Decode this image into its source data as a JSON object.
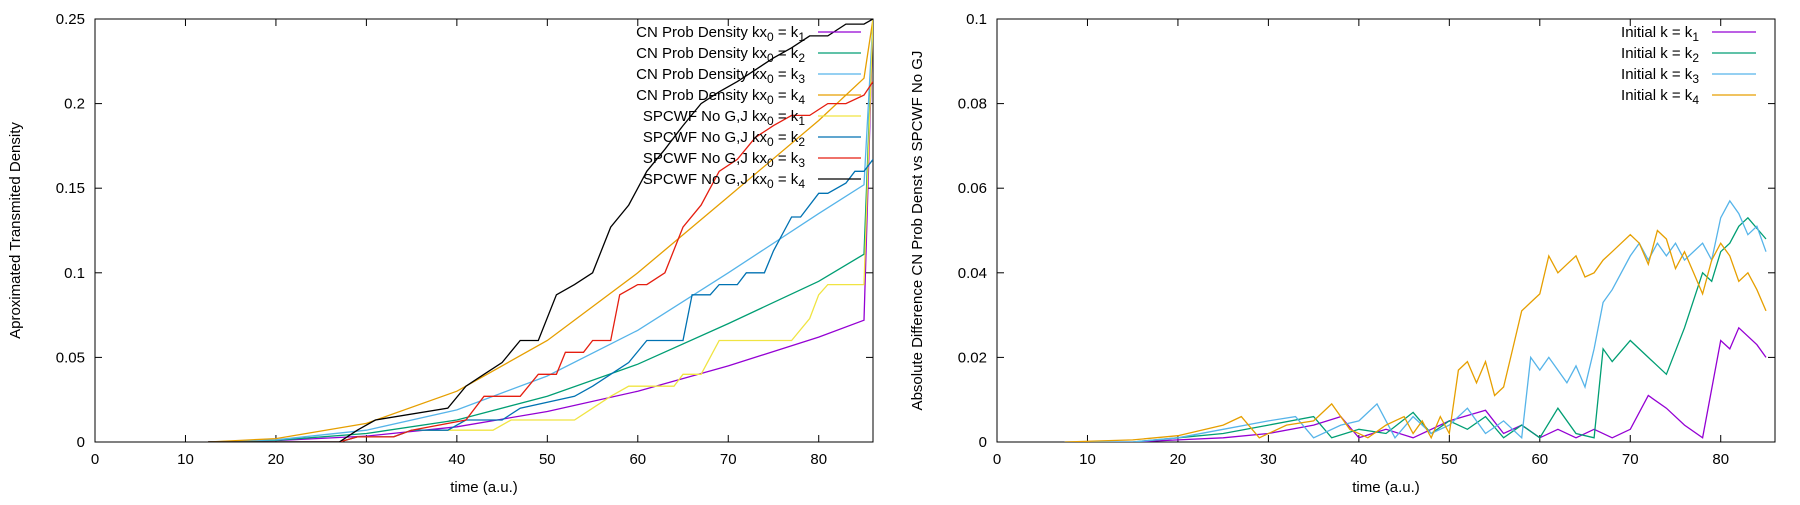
{
  "chart_data": [
    {
      "type": "line",
      "title": "",
      "xlabel": "time (a.u.)",
      "ylabel": "Aproximated Transmited Density",
      "xlim": [
        0,
        86
      ],
      "ylim": [
        0,
        0.25
      ],
      "xticks": [
        0,
        10,
        20,
        30,
        40,
        50,
        60,
        70,
        80
      ],
      "yticks": [
        0,
        0.05,
        0.1,
        0.15,
        0.2,
        0.25
      ],
      "xtick_labels": [
        "0",
        "10",
        "20",
        "30",
        "40",
        "50",
        "60",
        "70",
        "80"
      ],
      "ytick_labels": [
        "0",
        "0.05",
        "0.1",
        "0.15",
        "0.2",
        "0.25"
      ],
      "grid": false,
      "legend_position": "top-right",
      "series": [
        {
          "name": "CN Prob Density kx0 = k1",
          "legend": {
            "base": "CN Prob Density kx",
            "s1": "0",
            "mid": " = k",
            "s2": "1"
          },
          "color": "#9400d3",
          "x": [
            12.5,
            20,
            30,
            40,
            50,
            60,
            70,
            80,
            85,
            86
          ],
          "y": [
            0,
            0.0008,
            0.0035,
            0.009,
            0.018,
            0.03,
            0.045,
            0.062,
            0.072,
            0.25
          ]
        },
        {
          "name": "CN Prob Density kx0 = k2",
          "legend": {
            "base": "CN Prob Density kx",
            "s1": "0",
            "mid": " = k",
            "s2": "2"
          },
          "color": "#009e73",
          "x": [
            12.5,
            20,
            30,
            40,
            50,
            60,
            70,
            80,
            85,
            86
          ],
          "y": [
            0,
            0.001,
            0.005,
            0.013,
            0.027,
            0.046,
            0.07,
            0.095,
            0.111,
            0.25
          ]
        },
        {
          "name": "CN Prob Density kx0 = k3",
          "legend": {
            "base": "CN Prob Density kx",
            "s1": "0",
            "mid": " = k",
            "s2": "3"
          },
          "color": "#56b4e9",
          "x": [
            12.5,
            20,
            30,
            40,
            50,
            60,
            70,
            80,
            85,
            86
          ],
          "y": [
            0,
            0.0013,
            0.007,
            0.019,
            0.039,
            0.066,
            0.1,
            0.135,
            0.152,
            0.25
          ]
        },
        {
          "name": "CN Prob Density kx0 = k4",
          "legend": {
            "base": "CN Prob Density kx",
            "s1": "0",
            "mid": " = k",
            "s2": "4"
          },
          "color": "#e69f00",
          "x": [
            12.5,
            20,
            30,
            40,
            50,
            60,
            70,
            80,
            85,
            86
          ],
          "y": [
            0,
            0.002,
            0.011,
            0.03,
            0.06,
            0.1,
            0.145,
            0.19,
            0.215,
            0.25
          ]
        },
        {
          "name": "SPCWF No G,J kx0 = k1",
          "legend": {
            "base": "SPCWF No G,J kx",
            "s1": "0",
            "mid": " = k",
            "s2": "1"
          },
          "color": "#f0e442",
          "x": [
            12.5,
            27,
            29,
            33,
            35,
            44,
            46,
            53,
            55,
            57,
            59,
            64,
            65,
            67,
            69,
            77,
            79,
            80,
            81,
            84,
            85,
            86
          ],
          "y": [
            0,
            0,
            0.003,
            0.003,
            0.007,
            0.007,
            0.013,
            0.013,
            0.02,
            0.027,
            0.033,
            0.033,
            0.04,
            0.04,
            0.06,
            0.06,
            0.073,
            0.087,
            0.093,
            0.093,
            0.093,
            0.25
          ]
        },
        {
          "name": "SPCWF No G,J kx0 = k2",
          "legend": {
            "base": "SPCWF No G,J kx",
            "s1": "0",
            "mid": " = k",
            "s2": "2"
          },
          "color": "#0072b2",
          "x": [
            12.5,
            27,
            29,
            33,
            35,
            39,
            41,
            45,
            47,
            53,
            55,
            57,
            59,
            61,
            62,
            65,
            66,
            68,
            69,
            71,
            72,
            74,
            75,
            77,
            78,
            80,
            81,
            83,
            84,
            85,
            86
          ],
          "y": [
            0,
            0,
            0.003,
            0.003,
            0.007,
            0.007,
            0.013,
            0.013,
            0.02,
            0.027,
            0.033,
            0.04,
            0.047,
            0.06,
            0.06,
            0.06,
            0.087,
            0.087,
            0.093,
            0.093,
            0.1,
            0.1,
            0.113,
            0.133,
            0.133,
            0.147,
            0.147,
            0.153,
            0.16,
            0.16,
            0.167
          ]
        },
        {
          "name": "SPCWF No G,J kx0 = k3",
          "legend": {
            "base": "SPCWF No G,J kx",
            "s1": "0",
            "mid": " = k",
            "s2": "3"
          },
          "color": "#e51e10",
          "x": [
            12.5,
            27,
            29,
            33,
            35,
            41,
            43,
            47,
            49,
            51,
            52,
            54,
            55,
            57,
            58,
            60,
            61,
            63,
            65,
            67,
            69,
            71,
            73,
            75,
            77,
            79,
            81,
            83,
            85,
            86
          ],
          "y": [
            0,
            0,
            0.003,
            0.003,
            0.007,
            0.013,
            0.027,
            0.027,
            0.04,
            0.04,
            0.053,
            0.053,
            0.06,
            0.06,
            0.087,
            0.093,
            0.093,
            0.1,
            0.127,
            0.14,
            0.16,
            0.167,
            0.18,
            0.187,
            0.193,
            0.193,
            0.2,
            0.2,
            0.205,
            0.213
          ]
        },
        {
          "name": "SPCWF No G,J kx0 = k4",
          "legend": {
            "base": "SPCWF No G,J kx",
            "s1": "0",
            "mid": " = k",
            "s2": "4"
          },
          "color": "#000000",
          "x": [
            12.5,
            27,
            29,
            31,
            39,
            41,
            43,
            45,
            47,
            49,
            51,
            53,
            55,
            57,
            59,
            61,
            63,
            65,
            67,
            69,
            71,
            73,
            75,
            77,
            79,
            81,
            83,
            85,
            86
          ],
          "y": [
            0,
            0,
            0.007,
            0.013,
            0.02,
            0.033,
            0.04,
            0.047,
            0.06,
            0.06,
            0.087,
            0.093,
            0.1,
            0.127,
            0.14,
            0.16,
            0.173,
            0.187,
            0.2,
            0.207,
            0.213,
            0.22,
            0.227,
            0.233,
            0.24,
            0.24,
            0.247,
            0.247,
            0.25
          ]
        }
      ]
    },
    {
      "type": "line",
      "title": "",
      "xlabel": "time (a.u.)",
      "ylabel": "Absolute Difference CN Prob Denst vs SPCWF No GJ",
      "xlim": [
        0,
        86
      ],
      "ylim": [
        0,
        0.1
      ],
      "xticks": [
        0,
        10,
        20,
        30,
        40,
        50,
        60,
        70,
        80
      ],
      "yticks": [
        0,
        0.02,
        0.04,
        0.06,
        0.08,
        0.1
      ],
      "xtick_labels": [
        "0",
        "10",
        "20",
        "30",
        "40",
        "50",
        "60",
        "70",
        "80"
      ],
      "ytick_labels": [
        "0",
        "0.02",
        "0.04",
        "0.06",
        "0.08",
        "0.1"
      ],
      "grid": false,
      "legend_position": "top-right",
      "series": [
        {
          "name": "Initial k = k1",
          "legend": {
            "base": "Initial k = k",
            "s1": "1",
            "mid": "",
            "s2": ""
          },
          "color": "#9400d3",
          "x": [
            7.5,
            15,
            20,
            25,
            30,
            35,
            38,
            40,
            43,
            46,
            50,
            54,
            56,
            58,
            60,
            62,
            64,
            66,
            68,
            70,
            72,
            74,
            76,
            78,
            80,
            81,
            82,
            84,
            85
          ],
          "y": [
            0,
            0,
            0.0005,
            0.001,
            0.002,
            0.004,
            0.006,
            0.001,
            0.003,
            0.001,
            0.005,
            0.0075,
            0.002,
            0.004,
            0.001,
            0.003,
            0.001,
            0.003,
            0.001,
            0.003,
            0.011,
            0.008,
            0.004,
            0.001,
            0.024,
            0.022,
            0.027,
            0.023,
            0.02
          ]
        },
        {
          "name": "Initial k = k2",
          "legend": {
            "base": "Initial k = k",
            "s1": "2",
            "mid": "",
            "s2": ""
          },
          "color": "#009e73",
          "x": [
            7.5,
            15,
            20,
            25,
            30,
            35,
            37,
            40,
            43,
            46,
            48,
            50,
            52,
            54,
            56,
            58,
            60,
            62,
            64,
            66,
            67,
            68,
            70,
            72,
            74,
            76,
            78,
            79,
            80,
            81,
            82,
            83,
            85
          ],
          "y": [
            0,
            0,
            0.001,
            0.002,
            0.004,
            0.006,
            0.001,
            0.003,
            0.002,
            0.007,
            0.002,
            0.005,
            0.003,
            0.006,
            0.001,
            0.004,
            0.001,
            0.008,
            0.002,
            0.001,
            0.022,
            0.019,
            0.024,
            0.02,
            0.016,
            0.027,
            0.04,
            0.038,
            0.045,
            0.047,
            0.051,
            0.053,
            0.048
          ]
        },
        {
          "name": "Initial k = k3",
          "legend": {
            "base": "Initial k = k",
            "s1": "3",
            "mid": "",
            "s2": ""
          },
          "color": "#56b4e9",
          "x": [
            7.5,
            15,
            20,
            25,
            30,
            33,
            35,
            38,
            40,
            42,
            44,
            46,
            48,
            50,
            52,
            54,
            56,
            58,
            59,
            60,
            61,
            62,
            63,
            64,
            65,
            66,
            67,
            68,
            70,
            71,
            72,
            73,
            74,
            75,
            76,
            78,
            79,
            80,
            81,
            82,
            83,
            84,
            85
          ],
          "y": [
            0,
            0,
            0.001,
            0.003,
            0.005,
            0.006,
            0.001,
            0.004,
            0.005,
            0.009,
            0.001,
            0.006,
            0.002,
            0.004,
            0.008,
            0.002,
            0.005,
            0.001,
            0.02,
            0.017,
            0.02,
            0.017,
            0.014,
            0.018,
            0.013,
            0.022,
            0.033,
            0.036,
            0.044,
            0.047,
            0.043,
            0.047,
            0.044,
            0.047,
            0.043,
            0.047,
            0.043,
            0.053,
            0.057,
            0.054,
            0.049,
            0.051,
            0.045
          ]
        },
        {
          "name": "Initial k = k4",
          "legend": {
            "base": "Initial k = k",
            "s1": "4",
            "mid": "",
            "s2": ""
          },
          "color": "#e69f00",
          "x": [
            7.5,
            15,
            20,
            25,
            27,
            29,
            32,
            35,
            37,
            39,
            41,
            43,
            45,
            46,
            47,
            48,
            49,
            50,
            51,
            52,
            53,
            54,
            55,
            56,
            57,
            58,
            59,
            60,
            61,
            62,
            63,
            64,
            65,
            66,
            67,
            68,
            69,
            70,
            71,
            72,
            73,
            74,
            75,
            76,
            77,
            78,
            79,
            80,
            81,
            82,
            83,
            84,
            85
          ],
          "y": [
            0,
            0.0005,
            0.0015,
            0.004,
            0.006,
            0.001,
            0.004,
            0.005,
            0.009,
            0.003,
            0.001,
            0.004,
            0.006,
            0.002,
            0.005,
            0.001,
            0.006,
            0.002,
            0.017,
            0.019,
            0.014,
            0.019,
            0.011,
            0.013,
            0.022,
            0.031,
            0.033,
            0.035,
            0.044,
            0.04,
            0.042,
            0.044,
            0.039,
            0.04,
            0.043,
            0.045,
            0.047,
            0.049,
            0.047,
            0.042,
            0.05,
            0.048,
            0.041,
            0.045,
            0.04,
            0.035,
            0.043,
            0.047,
            0.044,
            0.038,
            0.04,
            0.036,
            0.031
          ]
        }
      ]
    }
  ]
}
